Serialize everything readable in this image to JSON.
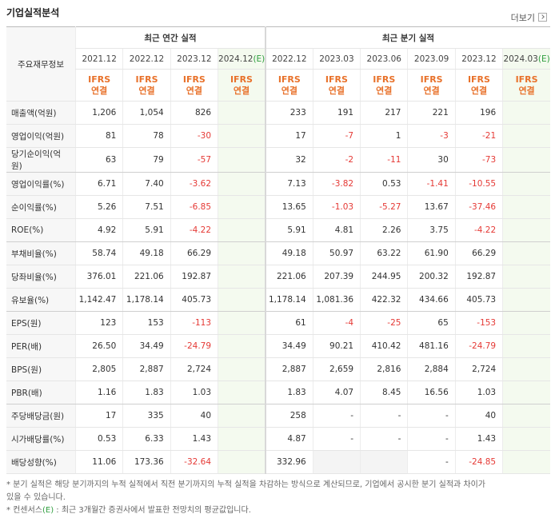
{
  "header": {
    "title": "기업실적분석",
    "more": "더보기"
  },
  "table": {
    "corner": "주요재무정보",
    "groups": [
      {
        "label": "최근 연간 실적",
        "columns": [
          {
            "period": "2021.12",
            "standard": "IFRS",
            "scope": "연결"
          },
          {
            "period": "2022.12",
            "standard": "IFRS",
            "scope": "연결"
          },
          {
            "period": "2023.12",
            "standard": "IFRS",
            "scope": "연결"
          },
          {
            "period": "2024.12",
            "estimate": "(E)",
            "standard": "IFRS",
            "scope": "연결"
          }
        ]
      },
      {
        "label": "최근 분기 실적",
        "columns": [
          {
            "period": "2022.12",
            "standard": "IFRS",
            "scope": "연결"
          },
          {
            "period": "2023.03",
            "standard": "IFRS",
            "scope": "연결"
          },
          {
            "period": "2023.06",
            "standard": "IFRS",
            "scope": "연결"
          },
          {
            "period": "2023.09",
            "standard": "IFRS",
            "scope": "연결"
          },
          {
            "period": "2023.12",
            "standard": "IFRS",
            "scope": "연결"
          },
          {
            "period": "2024.03",
            "estimate": "(E)",
            "standard": "IFRS",
            "scope": "연결"
          }
        ]
      }
    ],
    "rows": [
      {
        "label": "매출액(억원)",
        "cells": [
          "1,206",
          "1,054",
          "826",
          null,
          "233",
          "191",
          "217",
          "221",
          "196",
          null
        ]
      },
      {
        "label": "영업이익(억원)",
        "cells": [
          "81",
          "78",
          "-30",
          null,
          "17",
          "-7",
          "1",
          "-3",
          "-21",
          null
        ]
      },
      {
        "label": "당기순이익(억원)",
        "cells": [
          "63",
          "79",
          "-57",
          null,
          "32",
          "-2",
          "-11",
          "30",
          "-73",
          null
        ]
      },
      {
        "label": "영업이익률(%)",
        "cells": [
          "6.71",
          "7.40",
          "-3.62",
          null,
          "7.13",
          "-3.82",
          "0.53",
          "-1.41",
          "-10.55",
          null
        ]
      },
      {
        "label": "순이익률(%)",
        "cells": [
          "5.26",
          "7.51",
          "-6.85",
          null,
          "13.65",
          "-1.03",
          "-5.27",
          "13.67",
          "-37.46",
          null
        ]
      },
      {
        "label": "ROE(%)",
        "cells": [
          "4.92",
          "5.91",
          "-4.22",
          null,
          "5.91",
          "4.81",
          "2.26",
          "3.75",
          "-4.22",
          null
        ]
      },
      {
        "label": "부채비율(%)",
        "cells": [
          "58.74",
          "49.18",
          "66.29",
          null,
          "49.18",
          "50.97",
          "63.22",
          "61.90",
          "66.29",
          null
        ]
      },
      {
        "label": "당좌비율(%)",
        "cells": [
          "376.01",
          "221.06",
          "192.87",
          null,
          "221.06",
          "207.39",
          "244.95",
          "200.32",
          "192.87",
          null
        ]
      },
      {
        "label": "유보율(%)",
        "cells": [
          "1,142.47",
          "1,178.14",
          "405.73",
          null,
          "1,178.14",
          "1,081.36",
          "422.32",
          "434.66",
          "405.73",
          null
        ]
      },
      {
        "label": "EPS(원)",
        "cells": [
          "123",
          "153",
          "-113",
          null,
          "61",
          "-4",
          "-25",
          "65",
          "-153",
          null
        ]
      },
      {
        "label": "PER(배)",
        "cells": [
          "26.50",
          "34.49",
          "-24.79",
          null,
          "34.49",
          "90.21",
          "410.42",
          "481.16",
          "-24.79",
          null
        ]
      },
      {
        "label": "BPS(원)",
        "cells": [
          "2,805",
          "2,887",
          "2,724",
          null,
          "2,887",
          "2,659",
          "2,816",
          "2,884",
          "2,724",
          null
        ]
      },
      {
        "label": "PBR(배)",
        "cells": [
          "1.16",
          "1.83",
          "1.03",
          null,
          "1.83",
          "4.07",
          "8.45",
          "16.56",
          "1.03",
          null
        ]
      },
      {
        "label": "주당배당금(원)",
        "cells": [
          "17",
          "335",
          "40",
          null,
          "258",
          "-",
          "-",
          "-",
          "40",
          null
        ]
      },
      {
        "label": "시가배당률(%)",
        "cells": [
          "0.53",
          "6.33",
          "1.43",
          null,
          "4.87",
          "-",
          "-",
          "-",
          "1.43",
          null
        ]
      },
      {
        "label": "배당성향(%)",
        "cells": [
          "11.06",
          "173.36",
          "-32.64",
          null,
          "332.96",
          null,
          null,
          "-",
          "-24.85",
          null
        ]
      }
    ]
  },
  "notes": [
    {
      "text": "* 분기 실적은 해당 분기까지의 누적 실적에서 직전 분기까지의 누적 실적을 차감하는 방식으로 계산되므로, 기업에서 공시한 분기 실적과 차이가 있을 수 있습니다."
    },
    {
      "text": "* 컨센서스",
      "estimate": "(E)",
      "rest": " : 최근 3개월간 증권사에서 발표한 전망치의 평균값입니다."
    }
  ]
}
